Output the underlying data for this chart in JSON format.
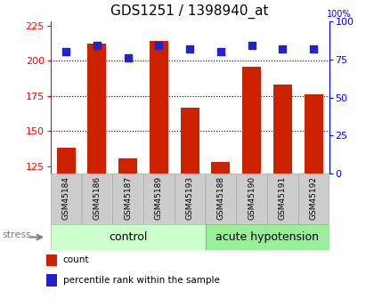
{
  "title": "GDS1251 / 1398940_at",
  "categories": [
    "GSM45184",
    "GSM45186",
    "GSM45187",
    "GSM45189",
    "GSM45193",
    "GSM45188",
    "GSM45190",
    "GSM45191",
    "GSM45192"
  ],
  "counts": [
    138,
    212,
    131,
    214,
    167,
    128,
    196,
    183,
    176
  ],
  "percentiles": [
    80,
    84,
    76,
    84,
    82,
    80,
    84,
    82,
    82
  ],
  "ylim_left": [
    120,
    228
  ],
  "ylim_right": [
    0,
    100
  ],
  "yticks_left": [
    125,
    150,
    175,
    200,
    225
  ],
  "yticks_right": [
    0,
    25,
    50,
    75,
    100
  ],
  "bar_color": "#cc2200",
  "dot_color": "#2222cc",
  "n_control": 5,
  "n_acute": 4,
  "control_label": "control",
  "acute_label": "acute hypotension",
  "stress_label": "stress",
  "legend_count": "count",
  "legend_percentile": "percentile rank within the sample",
  "group_bg_light": "#ccffcc",
  "group_bg_dark": "#99ee99",
  "xlabel_bg": "#cccccc",
  "bar_width": 0.6,
  "dot_size": 40,
  "title_fontsize": 11,
  "tick_fontsize": 8,
  "cat_fontsize": 6.5,
  "group_label_fontsize": 9,
  "stress_fontsize": 8,
  "legend_fontsize": 7.5
}
